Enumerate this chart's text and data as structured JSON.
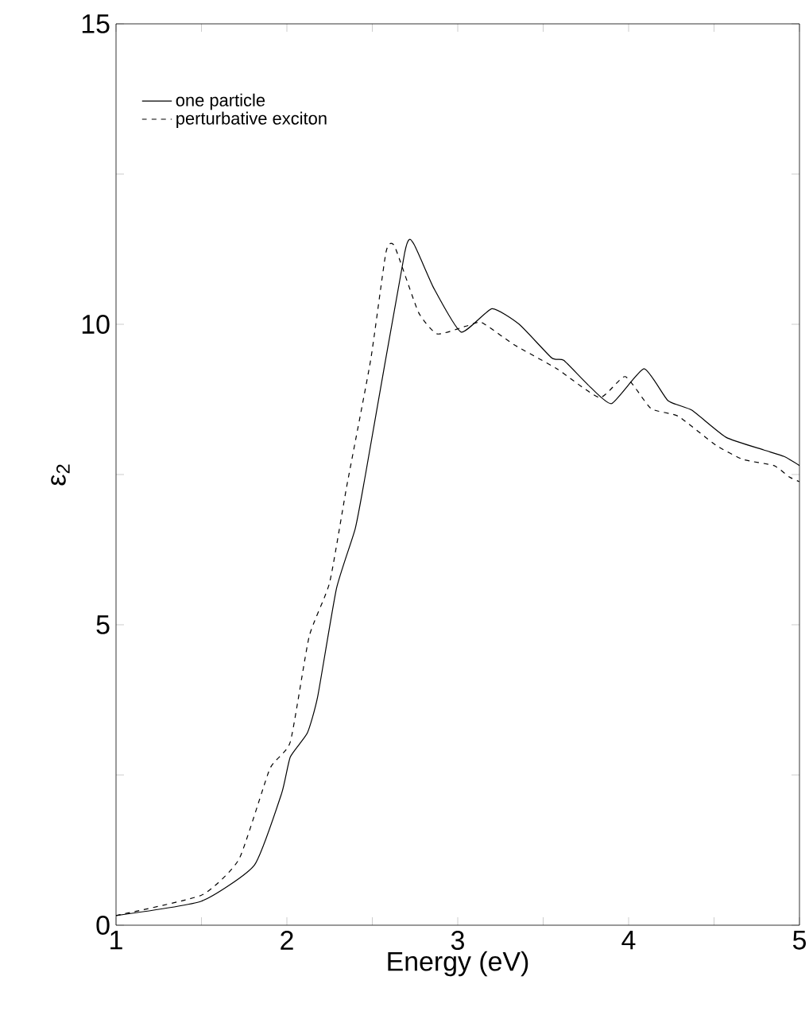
{
  "chart_data": {
    "type": "line",
    "xlabel": "Energy (eV)",
    "ylabel": "ε$_{2}$",
    "xlim": [
      1,
      5
    ],
    "ylim": [
      0,
      15
    ],
    "xticks": [
      1,
      {
        "value": 1.5,
        "label": null
      },
      2,
      {
        "value": 2.5,
        "label": null
      },
      3,
      {
        "value": 3.5,
        "label": null
      },
      4,
      {
        "value": 4.5,
        "label": null
      },
      5
    ],
    "yticks": [
      0,
      {
        "value": 2.5,
        "label": null
      },
      5,
      {
        "value": 7.5,
        "label": null
      },
      10,
      {
        "value": 12.5,
        "label": null
      },
      15
    ],
    "legend": "top left",
    "grid": false,
    "series": [
      {
        "name": "one particle",
        "color": "#000000",
        "line_style": "solid",
        "x": [
          1,
          1.5,
          1.81,
          1.97,
          2.02,
          2.12,
          2.18,
          2.29,
          2.4,
          2.46,
          2.69,
          2.74,
          2.86,
          3.02,
          3.2,
          3.36,
          3.55,
          3.62,
          3.76,
          3.9,
          4.09,
          4.23,
          4.37,
          4.57,
          4.79,
          4.91,
          5.0
        ],
        "values": [
          0.16,
          0.4,
          1.0,
          2.2,
          2.8,
          3.2,
          3.8,
          5.6,
          6.6,
          7.5,
          11.2,
          11.35,
          10.6,
          9.87,
          10.26,
          10.0,
          9.44,
          9.4,
          9.0,
          8.68,
          9.26,
          8.73,
          8.57,
          8.12,
          7.91,
          7.8,
          7.65
        ]
      },
      {
        "name": "perturbative exciton",
        "color": "#000000",
        "line_style": "dashed",
        "x": [
          1,
          1.5,
          1.72,
          1.9,
          2.02,
          2.13,
          2.25,
          2.35,
          2.49,
          2.58,
          2.63,
          2.77,
          2.88,
          3.05,
          3.14,
          3.33,
          3.58,
          3.83,
          3.98,
          4.13,
          4.29,
          4.51,
          4.67,
          4.85,
          4.94,
          5.0
        ],
        "values": [
          0.16,
          0.5,
          1.1,
          2.6,
          3.05,
          4.8,
          5.7,
          7.3,
          9.4,
          11.2,
          11.3,
          10.2,
          9.84,
          9.97,
          10.03,
          9.66,
          9.26,
          8.78,
          9.13,
          8.6,
          8.47,
          7.99,
          7.75,
          7.65,
          7.46,
          7.38
        ]
      }
    ]
  }
}
